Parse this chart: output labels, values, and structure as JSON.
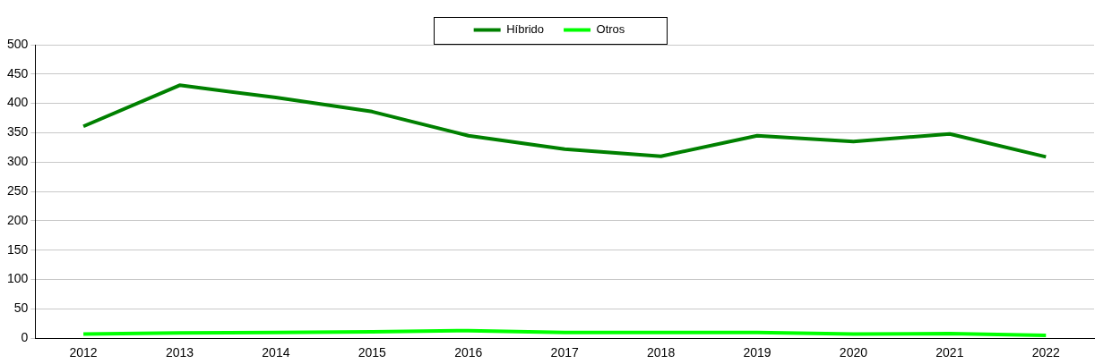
{
  "chart_data": {
    "type": "line",
    "categories": [
      "2012",
      "2013",
      "2014",
      "2015",
      "2016",
      "2017",
      "2018",
      "2019",
      "2020",
      "2021",
      "2022"
    ],
    "series": [
      {
        "name": "Híbrido",
        "color": "#008000",
        "values": [
          361,
          431,
          410,
          386,
          345,
          322,
          310,
          345,
          335,
          348,
          309
        ]
      },
      {
        "name": "Otros",
        "color": "#00ff00",
        "values": [
          7,
          9,
          10,
          11,
          13,
          10,
          10,
          10,
          7,
          8,
          5
        ]
      }
    ],
    "ylim": [
      0,
      500
    ],
    "yticks": [
      0,
      50,
      100,
      150,
      200,
      250,
      300,
      350,
      400,
      450,
      500
    ],
    "grid": "y",
    "legend": "top",
    "marker": "none",
    "line_style": "solid"
  }
}
